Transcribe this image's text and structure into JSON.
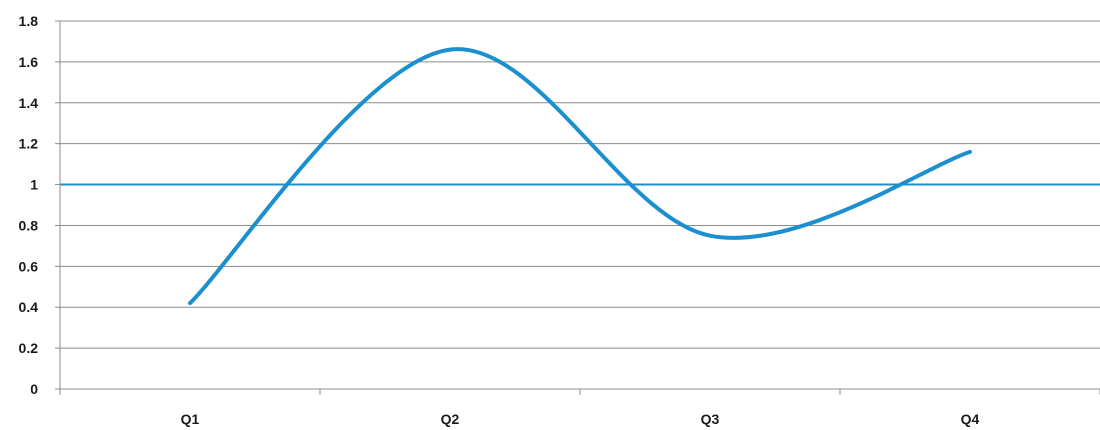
{
  "chart_data": {
    "type": "line",
    "title": "",
    "xlabel": "",
    "ylabel": "",
    "categories": [
      "Q1",
      "Q2",
      "Q3",
      "Q4"
    ],
    "ylim": [
      0,
      1.8
    ],
    "yticks": [
      0,
      0.2,
      0.4,
      0.6,
      0.8,
      1,
      1.2,
      1.4,
      1.6,
      1.8
    ],
    "ytick_labels": [
      "0",
      "0.2",
      "0.4",
      "0.6",
      "0.8",
      "1",
      "1.2",
      "1.4",
      "1.6",
      "1.8"
    ],
    "grid": "horizontal",
    "legend": "none",
    "series": [
      {
        "values": [
          0.42,
          1.66,
          0.75,
          1.16
        ],
        "color": "#1b8fcf"
      }
    ],
    "reference_line": {
      "value": 1,
      "color": "#1b8fcf"
    }
  }
}
